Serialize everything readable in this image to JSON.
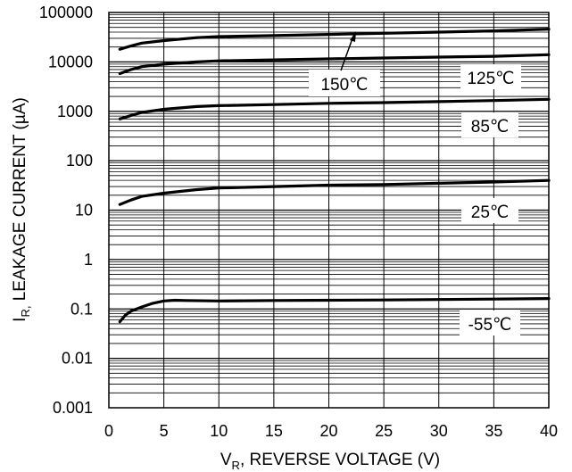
{
  "chart_data": {
    "type": "line",
    "xlabel": {
      "main": "V",
      "sub": "R",
      "rest": ", REVERSE VOLTAGE (V)"
    },
    "ylabel": {
      "main": "I",
      "sub": "R,",
      "rest": " LEAKAGE CURRENT (µA)"
    },
    "x_scale": "linear",
    "y_scale": "log",
    "xlim": [
      0,
      40
    ],
    "ylim": [
      0.001,
      100000
    ],
    "x_ticks": [
      "0",
      "5",
      "10",
      "15",
      "20",
      "25",
      "30",
      "35",
      "40"
    ],
    "y_ticks": [
      "0.001",
      "0.01",
      "0.1",
      "1",
      "10",
      "100",
      "1000",
      "10000",
      "100000"
    ],
    "grid": true,
    "series": [
      {
        "name": "150℃",
        "x": [
          1,
          2,
          3,
          5,
          8,
          10,
          15,
          20,
          25,
          30,
          35,
          40
        ],
        "values": [
          18000,
          21000,
          24000,
          27000,
          31000,
          32500,
          34000,
          36000,
          38000,
          40000,
          42500,
          46000
        ]
      },
      {
        "name": "125℃",
        "x": [
          1,
          2,
          3,
          5,
          8,
          10,
          15,
          20,
          25,
          30,
          35,
          40
        ],
        "values": [
          5800,
          7000,
          8000,
          9000,
          10000,
          10500,
          11000,
          11500,
          12000,
          12500,
          13000,
          14000
        ]
      },
      {
        "name": "85℃",
        "x": [
          1,
          2,
          3,
          5,
          8,
          10,
          15,
          20,
          25,
          30,
          35,
          40
        ],
        "values": [
          700,
          820,
          950,
          1100,
          1250,
          1300,
          1370,
          1450,
          1500,
          1570,
          1650,
          1750
        ]
      },
      {
        "name": "25℃",
        "x": [
          1,
          2,
          3,
          5,
          8,
          10,
          15,
          20,
          25,
          30,
          35,
          40
        ],
        "values": [
          13,
          16,
          19,
          22,
          26,
          28,
          30,
          32,
          33,
          35,
          37,
          40
        ]
      },
      {
        "name": "-55℃",
        "x": [
          1,
          1.5,
          2,
          3,
          4,
          5,
          6,
          7,
          10,
          15,
          20,
          25,
          30,
          35,
          40
        ],
        "values": [
          0.055,
          0.075,
          0.09,
          0.11,
          0.13,
          0.145,
          0.15,
          0.148,
          0.145,
          0.148,
          0.15,
          0.152,
          0.155,
          0.158,
          0.162
        ]
      }
    ],
    "annotations": [
      "150℃",
      "125℃",
      "85℃",
      "25℃",
      "-55℃"
    ]
  },
  "colors": {
    "line": "#000000",
    "grid": "#000000",
    "background": "#ffffff"
  }
}
